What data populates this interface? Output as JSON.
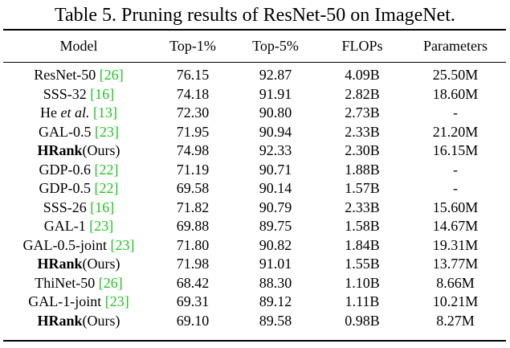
{
  "caption": "Table 5. Pruning results of ResNet-50 on ImageNet.",
  "columns": [
    "Model",
    "Top-1%",
    "Top-5%",
    "FLOPs",
    "Parameters"
  ],
  "rows": [
    {
      "model_bold": "",
      "model": "ResNet-50",
      "model_italic": "",
      "cite": "[26]",
      "top1": "76.15",
      "top5": "92.87",
      "flops": "4.09B",
      "params": "25.50M"
    },
    {
      "model_bold": "",
      "model": "SSS-32",
      "model_italic": "",
      "cite": "[16]",
      "top1": "74.18",
      "top5": "91.91",
      "flops": "2.82B",
      "params": "18.60M"
    },
    {
      "model_bold": "",
      "model": "He",
      "model_italic": "et al.",
      "cite": "[13]",
      "top1": "72.30",
      "top5": "90.80",
      "flops": "2.73B",
      "params": "-"
    },
    {
      "model_bold": "",
      "model": "GAL-0.5",
      "model_italic": "",
      "cite": "[23]",
      "top1": "71.95",
      "top5": "90.94",
      "flops": "2.33B",
      "params": "21.20M"
    },
    {
      "model_bold": "HRank",
      "model": "(Ours)",
      "model_italic": "",
      "cite": "",
      "top1": "74.98",
      "top5": "92.33",
      "flops": "2.30B",
      "params": "16.15M"
    },
    {
      "model_bold": "",
      "model": "GDP-0.6",
      "model_italic": "",
      "cite": "[22]",
      "top1": "71.19",
      "top5": "90.71",
      "flops": "1.88B",
      "params": "-"
    },
    {
      "model_bold": "",
      "model": "GDP-0.5",
      "model_italic": "",
      "cite": "[22]",
      "top1": "69.58",
      "top5": "90.14",
      "flops": "1.57B",
      "params": "-"
    },
    {
      "model_bold": "",
      "model": "SSS-26",
      "model_italic": "",
      "cite": "[16]",
      "top1": "71.82",
      "top5": "90.79",
      "flops": "2.33B",
      "params": "15.60M"
    },
    {
      "model_bold": "",
      "model": "GAL-1",
      "model_italic": "",
      "cite": "[23]",
      "top1": "69.88",
      "top5": "89.75",
      "flops": "1.58B",
      "params": "14.67M"
    },
    {
      "model_bold": "",
      "model": "GAL-0.5-joint",
      "model_italic": "",
      "cite": "[23]",
      "top1": "71.80",
      "top5": "90.82",
      "flops": "1.84B",
      "params": "19.31M"
    },
    {
      "model_bold": "HRank",
      "model": "(Ours)",
      "model_italic": "",
      "cite": "",
      "top1": "71.98",
      "top5": "91.01",
      "flops": "1.55B",
      "params": "13.77M"
    },
    {
      "model_bold": "",
      "model": "ThiNet-50",
      "model_italic": "",
      "cite": "[26]",
      "top1": "68.42",
      "top5": "88.30",
      "flops": "1.10B",
      "params": "8.66M"
    },
    {
      "model_bold": "",
      "model": "GAL-1-joint",
      "model_italic": "",
      "cite": "[23]",
      "top1": "69.31",
      "top5": "89.12",
      "flops": "1.11B",
      "params": "10.21M"
    },
    {
      "model_bold": "HRank",
      "model": "(Ours)",
      "model_italic": "",
      "cite": "",
      "top1": "69.10",
      "top5": "89.58",
      "flops": "0.98B",
      "params": "8.27M"
    }
  ],
  "colors": {
    "citation": "#22c322",
    "text": "#000000",
    "background": "#ffffff"
  }
}
